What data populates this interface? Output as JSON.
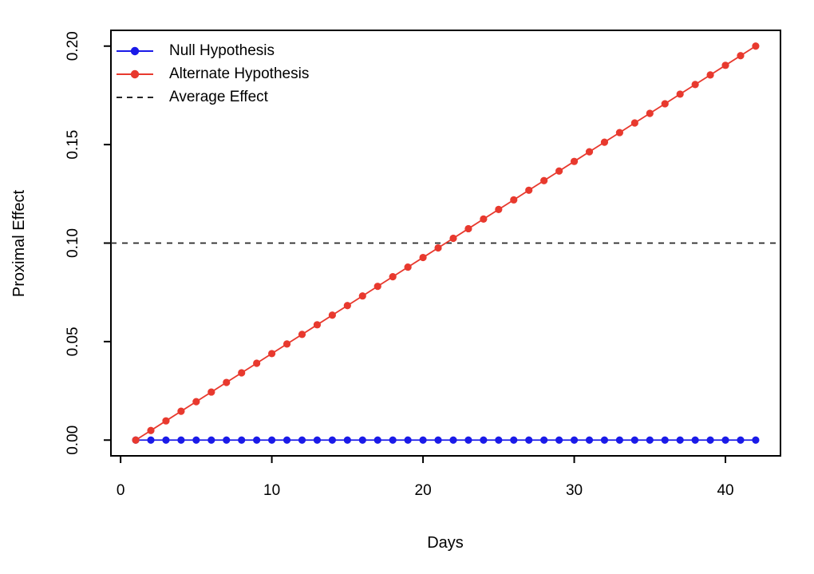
{
  "chart_data": {
    "type": "line",
    "title": "",
    "xlabel": "Days",
    "ylabel": "Proximal Effect",
    "xlim": [
      -0.64,
      43.64
    ],
    "ylim": [
      -0.008,
      0.208
    ],
    "xticks": [
      0,
      10,
      20,
      30,
      40
    ],
    "xtick_labels": [
      "0",
      "10",
      "20",
      "30",
      "40"
    ],
    "yticks": [
      0,
      0.05,
      0.1,
      0.15,
      0.2
    ],
    "ytick_labels": [
      "0.00",
      "0.05",
      "0.10",
      "0.15",
      "0.20"
    ],
    "grid": false,
    "legend_position": "top-left",
    "axis_color": "#000000",
    "x": [
      1,
      2,
      3,
      4,
      5,
      6,
      7,
      8,
      9,
      10,
      11,
      12,
      13,
      14,
      15,
      16,
      17,
      18,
      19,
      20,
      21,
      22,
      23,
      24,
      25,
      26,
      27,
      28,
      29,
      30,
      31,
      32,
      33,
      34,
      35,
      36,
      37,
      38,
      39,
      40,
      41,
      42
    ],
    "series": [
      {
        "name": "Null Hypothesis",
        "color": "#1a1ae8",
        "marker": "filled-circle",
        "line_style": "solid",
        "values": [
          0,
          0,
          0,
          0,
          0,
          0,
          0,
          0,
          0,
          0,
          0,
          0,
          0,
          0,
          0,
          0,
          0,
          0,
          0,
          0,
          0,
          0,
          0,
          0,
          0,
          0,
          0,
          0,
          0,
          0,
          0,
          0,
          0,
          0,
          0,
          0,
          0,
          0,
          0,
          0,
          0,
          0
        ]
      },
      {
        "name": "Alternate Hypothesis",
        "color": "#e8392e",
        "marker": "filled-circle",
        "line_style": "solid",
        "values": [
          0,
          0.004878,
          0.009756,
          0.014634,
          0.019512,
          0.02439,
          0.029268,
          0.034146,
          0.039024,
          0.043902,
          0.04878,
          0.053659,
          0.058537,
          0.063415,
          0.068293,
          0.073171,
          0.078049,
          0.082927,
          0.087805,
          0.092683,
          0.097561,
          0.102439,
          0.107317,
          0.112195,
          0.117073,
          0.121951,
          0.126829,
          0.131707,
          0.136585,
          0.141463,
          0.146341,
          0.15122,
          0.156098,
          0.160976,
          0.165854,
          0.170732,
          0.17561,
          0.180488,
          0.185366,
          0.190244,
          0.195122,
          0.2
        ]
      }
    ],
    "reference_lines": [
      {
        "name": "Average Effect",
        "value": 0.1,
        "color": "#262626",
        "line_style": "dashed"
      }
    ]
  }
}
